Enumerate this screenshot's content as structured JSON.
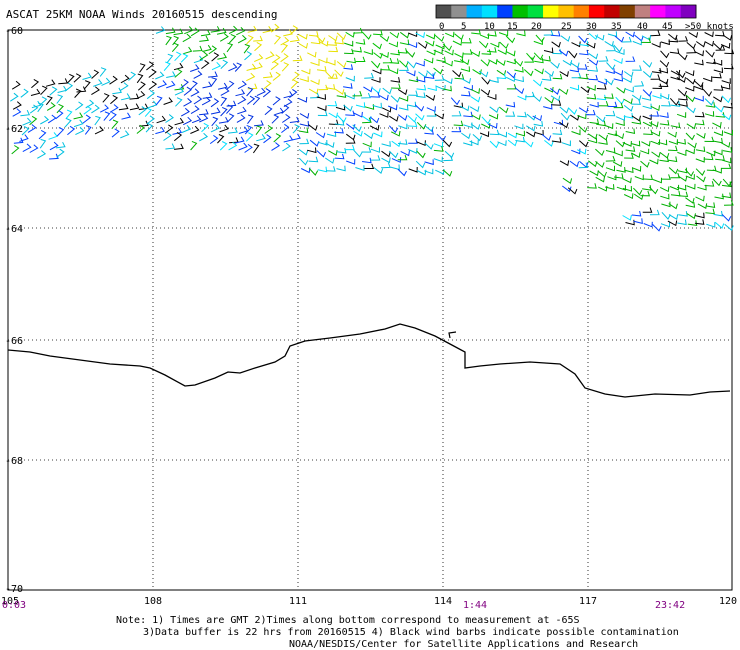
{
  "title": "ASCAT 25KM NOAA Winds 20160515 descending",
  "legend": {
    "colors": [
      "#505050",
      "#909090",
      "#00b0ff",
      "#00e0ff",
      "#0040ff",
      "#00c000",
      "#00e040",
      "#ffff00",
      "#ffc000",
      "#ff8000",
      "#ff0000",
      "#c00000",
      "#804000",
      "#c08080",
      "#ff00ff",
      "#c000ff",
      "#8000c0"
    ],
    "labels": [
      "0",
      "5",
      "10",
      "15",
      "20",
      "25",
      "30",
      "35",
      "40",
      "45",
      ">50 knots"
    ]
  },
  "axes": {
    "lon_ticks": [
      "105",
      "108",
      "111",
      "114",
      "117",
      "120"
    ],
    "lat_ticks": [
      "-60",
      "-62",
      "-64",
      "-66",
      "-68",
      "-70"
    ]
  },
  "times": [
    "0:03",
    "1:44",
    "23:42"
  ],
  "notes": [
    "Note: 1) Times are GMT 2)Times along bottom correspond to measurement at -65S",
    "3)Data buffer is 22 hrs from 20160515 4) Black wind barbs indicate possible contamination",
    "NOAA/NESDIS/Center for Satellite Applications and Research"
  ]
}
